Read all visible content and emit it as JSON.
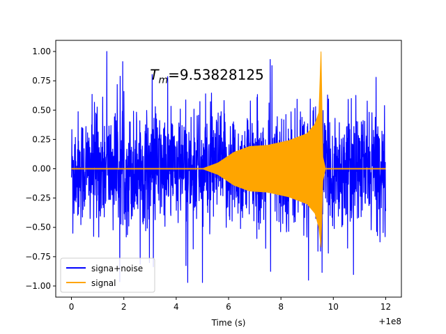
{
  "chart_data": {
    "type": "line",
    "annotation": {
      "symbol": "T",
      "subscript": "m",
      "value_text": "=9.53828125",
      "x": 3.0,
      "y": 0.8
    },
    "xlabel": "Time (s)",
    "x_offset_label": "+1e8",
    "xlim": [
      -0.6,
      12.6
    ],
    "ylim": [
      -1.095,
      1.095
    ],
    "xticks": [
      0,
      2,
      4,
      6,
      8,
      10,
      12
    ],
    "xtick_labels": [
      "0",
      "2",
      "4",
      "6",
      "8",
      "10",
      "12"
    ],
    "yticks": [
      -1.0,
      -0.75,
      -0.5,
      -0.25,
      0.0,
      0.25,
      0.5,
      0.75,
      1.0
    ],
    "ytick_labels": [
      "−1.00",
      "−0.75",
      "−0.50",
      "−0.25",
      "0.00",
      "0.25",
      "0.50",
      "0.75",
      "1.00"
    ],
    "legend_position": "lower-left",
    "grid": false,
    "series": [
      {
        "name": "signa+noise",
        "color": "#0000ff",
        "x_range": [
          0,
          12
        ],
        "typical_amplitude": 0.32,
        "max": 1.0,
        "min": -0.97,
        "notable_spikes": [
          {
            "x": 1.35,
            "y": 1.0
          },
          {
            "x": 5.0,
            "y": -0.97
          },
          {
            "x": 9.05,
            "y": -0.95
          },
          {
            "x": 0.05,
            "y": 0.44
          },
          {
            "x": 0.05,
            "y": -0.55
          }
        ]
      },
      {
        "name": "signal",
        "color": "#ffa500",
        "x_range": [
          0,
          12
        ],
        "envelope": [
          {
            "x": 0.0,
            "upper": 0.0,
            "lower": 0.0
          },
          {
            "x": 5.0,
            "upper": 0.0,
            "lower": 0.0
          },
          {
            "x": 5.6,
            "upper": 0.05,
            "lower": -0.05
          },
          {
            "x": 6.2,
            "upper": 0.14,
            "lower": -0.14
          },
          {
            "x": 6.8,
            "upper": 0.19,
            "lower": -0.19
          },
          {
            "x": 7.5,
            "upper": 0.2,
            "lower": -0.2
          },
          {
            "x": 8.3,
            "upper": 0.24,
            "lower": -0.24
          },
          {
            "x": 9.0,
            "upper": 0.3,
            "lower": -0.3
          },
          {
            "x": 9.3,
            "upper": 0.38,
            "lower": -0.38
          },
          {
            "x": 9.45,
            "upper": 0.48,
            "lower": -0.5
          },
          {
            "x": 9.53,
            "upper": 1.0,
            "lower": -0.67
          },
          {
            "x": 9.6,
            "upper": 0.1,
            "lower": -0.1
          },
          {
            "x": 9.7,
            "upper": 0.0,
            "lower": 0.0
          },
          {
            "x": 12.0,
            "upper": 0.0,
            "lower": 0.0
          }
        ]
      }
    ]
  }
}
